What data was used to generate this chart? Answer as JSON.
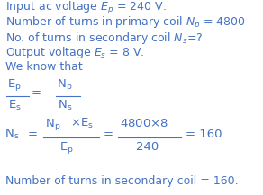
{
  "bg_color": "#ffffff",
  "text_color": "#4472c4",
  "figsize": [
    2.92,
    2.17
  ],
  "dpi": 100,
  "line1": "Input ac voltage $E_p$ = 240 V.",
  "line2": "Number of turns in primary coil $N_p$ = 4800",
  "line3": "No. of turns in secondary coil $N_s$=?",
  "line4": "Output voltage $E_s$ = 8 V.",
  "line5": "We know that",
  "conclusion": "Number of turns in secondary coil = 160.",
  "fs_text": 9.0,
  "fs_math": 9.5,
  "color": "#4472c4"
}
